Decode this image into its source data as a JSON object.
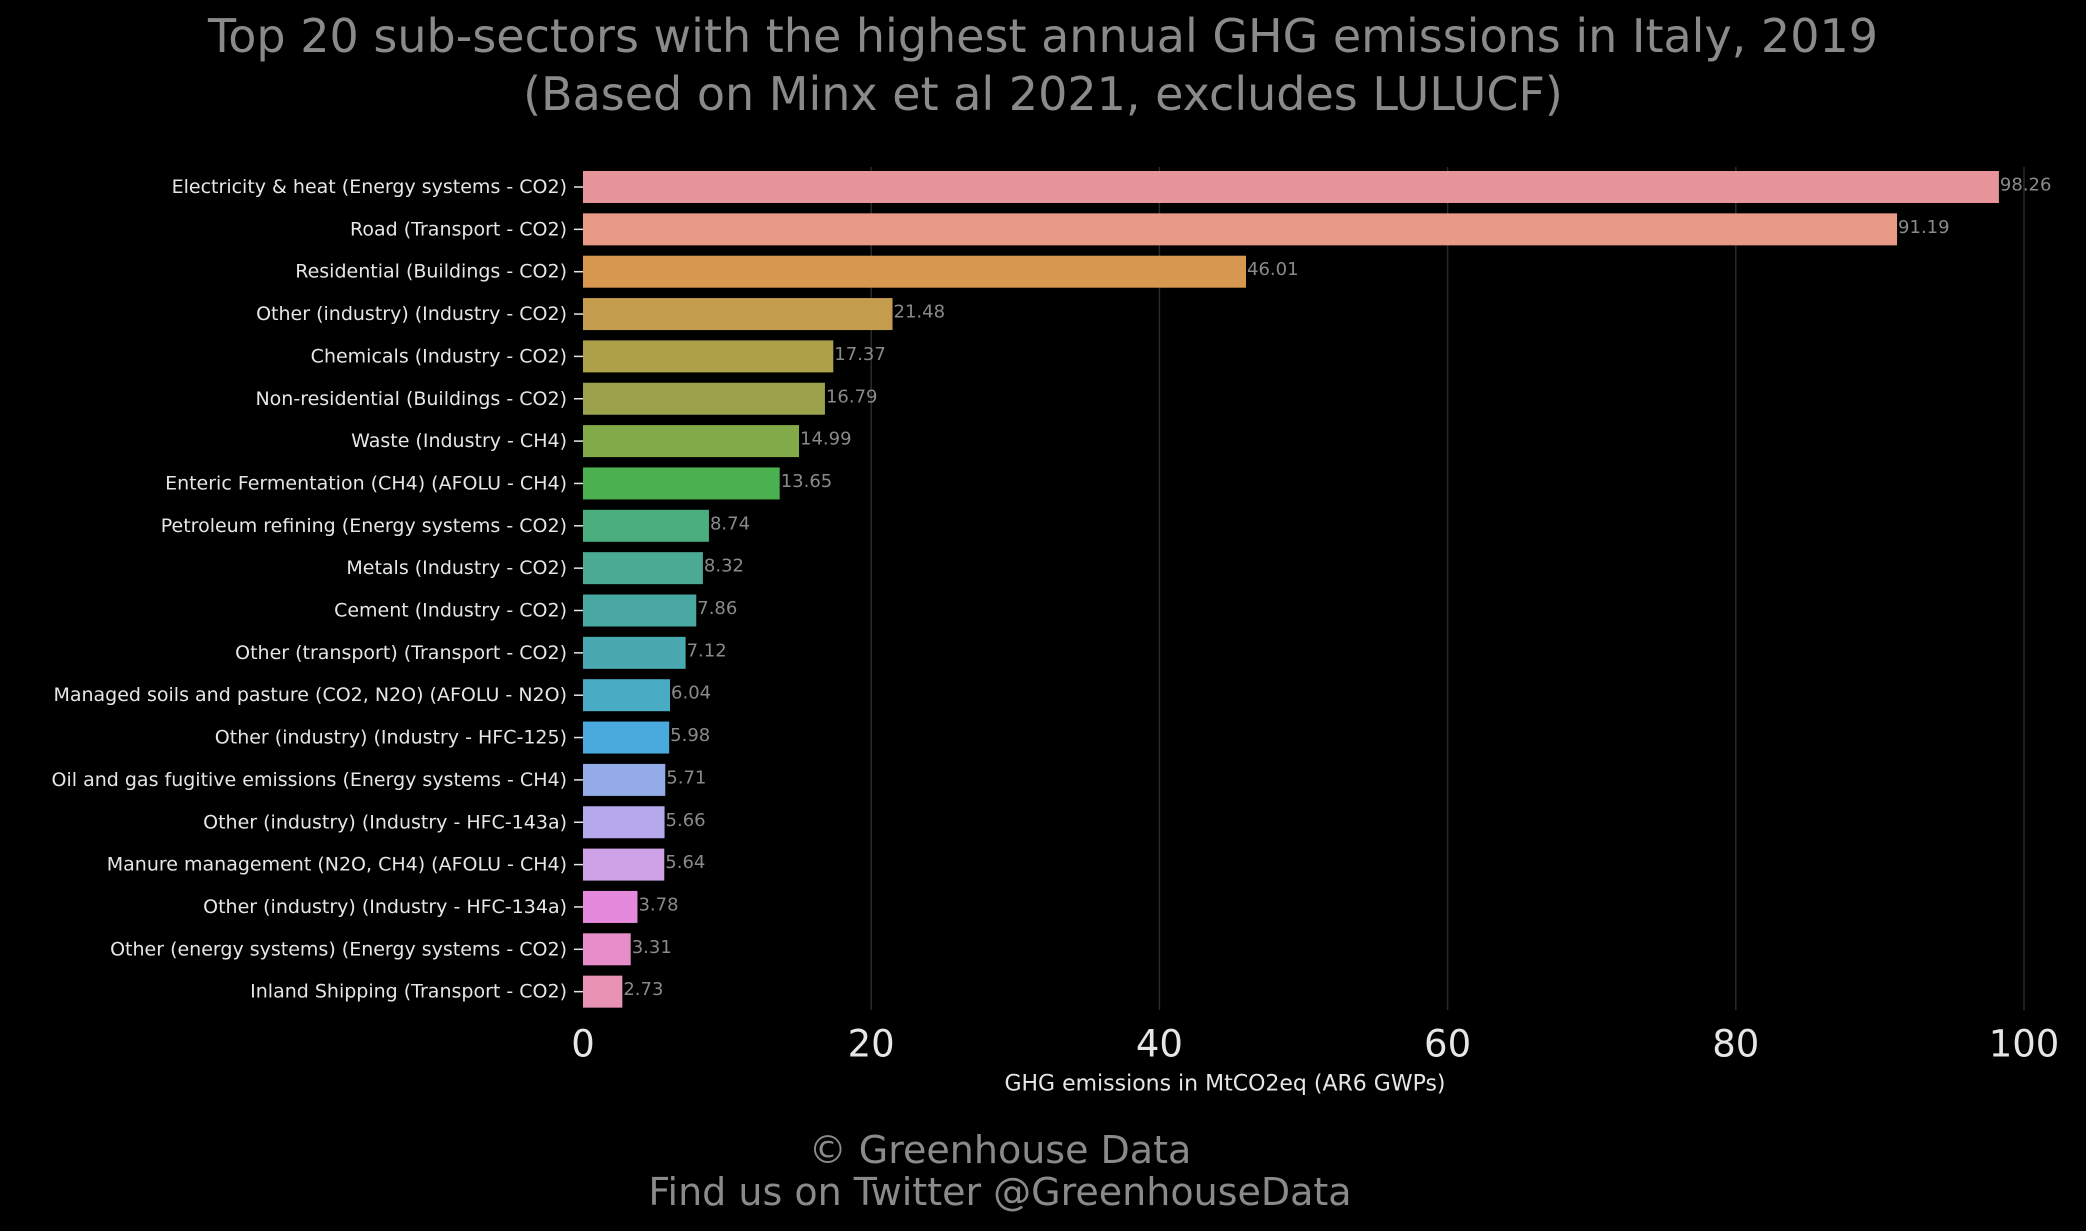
{
  "title": {
    "line1": "Top 20 sub-sectors with the highest annual GHG emissions in Italy, 2019",
    "line2": "(Based on Minx et al 2021, excludes LULUCF)"
  },
  "credits": {
    "line1": "© Greenhouse Data",
    "line2": "Find us on Twitter @GreenhouseData"
  },
  "colors": {
    "background": "#000000",
    "grid": "#2a2a2a",
    "text_muted": "#8a8a8a",
    "text_light": "#e6e6e6"
  },
  "chart_data": {
    "type": "bar",
    "orientation": "horizontal",
    "xlabel": "GHG emissions in MtCO2eq (AR6 GWPs)",
    "ylabel": "",
    "xlim": [
      0,
      100
    ],
    "xticks": [
      0,
      20,
      40,
      60,
      80,
      100
    ],
    "grid": "vertical",
    "categories": [
      "Electricity & heat (Energy systems - CO2)",
      "Road (Transport - CO2)",
      "Residential (Buildings - CO2)",
      "Other (industry) (Industry - CO2)",
      "Chemicals (Industry - CO2)",
      "Non-residential (Buildings - CO2)",
      "Waste (Industry - CH4)",
      "Enteric Fermentation (CH4) (AFOLU - CH4)",
      "Petroleum refining (Energy systems - CO2)",
      "Metals (Industry - CO2)",
      "Cement (Industry - CO2)",
      "Other (transport) (Transport - CO2)",
      "Managed soils and pasture (CO2, N2O) (AFOLU - N2O)",
      "Other (industry) (Industry - HFC-125)",
      "Oil and gas fugitive emissions (Energy systems - CH4)",
      "Other (industry) (Industry - HFC-143a)",
      "Manure management (N2O, CH4) (AFOLU - CH4)",
      "Other (industry) (Industry - HFC-134a)",
      "Other (energy systems) (Energy systems - CO2)",
      "Inland Shipping (Transport - CO2)"
    ],
    "values": [
      98.26,
      91.19,
      46.01,
      21.48,
      17.37,
      16.79,
      14.99,
      13.65,
      8.74,
      8.32,
      7.86,
      7.12,
      6.04,
      5.98,
      5.71,
      5.66,
      5.64,
      3.78,
      3.31,
      2.73
    ],
    "value_labels": [
      "98.26",
      "91.19",
      "46.01",
      "21.48",
      "17.37",
      "16.79",
      "14.99",
      "13.65",
      "8.74",
      "8.32",
      "7.86",
      "7.12",
      "6.04",
      "5.98",
      "5.71",
      "5.66",
      "5.64",
      "3.78",
      "3.31",
      "2.73"
    ],
    "bar_colors": [
      "#e8949b",
      "#e89a86",
      "#d8984f",
      "#c49c4e",
      "#ae9f49",
      "#9ca24b",
      "#82aa48",
      "#4bb050",
      "#4aae7f",
      "#4aaa92",
      "#49a8a2",
      "#49a8b0",
      "#4aabc4",
      "#4aaadd",
      "#93abe6",
      "#b6a8ec",
      "#cfa1e6",
      "#e489dc",
      "#e68dca",
      "#e892b4"
    ]
  }
}
